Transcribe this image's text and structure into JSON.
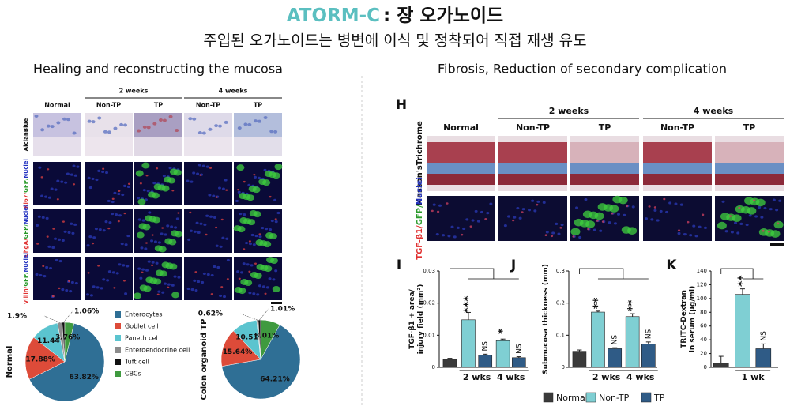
{
  "header": {
    "brand": "ATORM-C",
    "title": ": 장 오가노이드",
    "subtitle": "주입된 오가노이드는 병변에 이식 및 정착되어 직접 재생 유도"
  },
  "left": {
    "title": "Healing and reconstructing the mucosa",
    "groups": [
      "2 weeks",
      "4 weeks"
    ],
    "columns": [
      "Normal",
      "Non-TP",
      "TP",
      "Non-TP",
      "TP"
    ],
    "rows": [
      {
        "parts": [
          "AlcianBlue"
        ],
        "colors": [
          "#111111"
        ]
      },
      {
        "parts": [
          "Ki67/",
          "GFP/",
          "Nuclei"
        ],
        "colors": [
          "#e03030",
          "#2a9a2a",
          "#2030c0"
        ]
      },
      {
        "parts": [
          "ChgA/",
          "GFP/",
          "Nuclei"
        ],
        "colors": [
          "#e03030",
          "#2a9a2a",
          "#2030c0"
        ]
      },
      {
        "parts": [
          "Villin/",
          "GFP/",
          "Nuclei"
        ],
        "colors": [
          "#e03030",
          "#2a9a2a",
          "#2030c0"
        ]
      }
    ]
  },
  "right": {
    "title": "Fibrosis, Reduction of secondary complication",
    "panel": "H",
    "groups": [
      "2 weeks",
      "4 weeks"
    ],
    "columns": [
      "Normal",
      "Non-TP",
      "TP",
      "Non-TP",
      "TP"
    ],
    "rows": [
      {
        "parts": [
          "Masson's",
          "Trichrome"
        ],
        "colors": [
          "#111111",
          "#111111"
        ]
      },
      {
        "parts": [
          "TGF-β1/",
          "GFP/",
          "Nuclei"
        ],
        "colors": [
          "#e03030",
          "#2a9a2a",
          "#2030c0"
        ]
      }
    ]
  },
  "legend": [
    {
      "name": "Normal",
      "color": "#3a3a3a"
    },
    {
      "name": "Non-TP",
      "color": "#7fcfd3"
    },
    {
      "name": "TP",
      "color": "#2f5b86"
    }
  ],
  "chart_data": [
    {
      "type": "pie",
      "label": "Normal",
      "categories": [
        "Enterocytes",
        "Goblet cell",
        "Paneth cel",
        "Enteroendocrine cell",
        "Tuft cell",
        "CBCs"
      ],
      "values": [
        63.82,
        17.88,
        11.44,
        1.9,
        1.06,
        3.76
      ],
      "value_labels": [
        "63.82%",
        "17.88%",
        "11.44%",
        "1.9%",
        "1.06%",
        "3.76%"
      ],
      "colors": [
        "#2f6f95",
        "#dd4b39",
        "#5bc4cf",
        "#8c8c8c",
        "#111111",
        "#3f9a3f"
      ]
    },
    {
      "type": "pie",
      "label": "Colon organoid TP",
      "values": [
        64.21,
        15.64,
        10.51,
        0.62,
        1.01,
        8.01
      ],
      "value_labels": [
        "64.21%",
        "15.64%",
        "10.51%",
        "0.62%",
        "1.01%",
        "8.01%"
      ],
      "colors": [
        "#2f6f95",
        "#dd4b39",
        "#5bc4cf",
        "#8c8c8c",
        "#111111",
        "#3f9a3f"
      ]
    },
    {
      "type": "bar",
      "panel": "I",
      "ylabel": [
        "TGF-β1 + area/",
        "injury field (mm²)"
      ],
      "ylim": [
        0,
        0.03
      ],
      "yticks": [
        0,
        0.01,
        0.02,
        0.03
      ],
      "values": [
        0.0025,
        0.0148,
        0.0038,
        0.0083,
        0.003
      ],
      "errors": [
        0.0003,
        0.0023,
        0.0003,
        0.0005,
        0.0003
      ],
      "colors": [
        "#3a3a3a",
        "#7fcfd3",
        "#2f5b86",
        "#7fcfd3",
        "#2f5b86"
      ],
      "annotations": [
        "***",
        "NS",
        "*",
        "NS"
      ],
      "group_labels": [
        "2 wks",
        "4 wks"
      ]
    },
    {
      "type": "bar",
      "panel": "J",
      "ylabel": [
        "Submucosa thickness (mm)"
      ],
      "ylim": [
        0,
        0.3
      ],
      "yticks": [
        0,
        0.1,
        0.2,
        0.3
      ],
      "values": [
        0.05,
        0.172,
        0.058,
        0.158,
        0.073
      ],
      "errors": [
        0.004,
        0.003,
        0.003,
        0.009,
        0.006
      ],
      "colors": [
        "#3a3a3a",
        "#7fcfd3",
        "#2f5b86",
        "#7fcfd3",
        "#2f5b86"
      ],
      "annotations": [
        "**",
        "NS",
        "**",
        "NS"
      ],
      "group_labels": [
        "2 wks",
        "4 wks"
      ]
    },
    {
      "type": "bar",
      "panel": "K",
      "ylabel": [
        "TRITC-Dextran",
        "in serum (μg/ml)"
      ],
      "ylim": [
        0,
        140
      ],
      "yticks": [
        0,
        20,
        40,
        60,
        80,
        100,
        120,
        140
      ],
      "values": [
        6,
        106,
        27
      ],
      "errors": [
        10,
        8,
        7
      ],
      "colors": [
        "#3a3a3a",
        "#7fcfd3",
        "#2f5b86"
      ],
      "annotations": [
        "**",
        "NS"
      ],
      "group_labels": [
        "1 wk"
      ]
    }
  ]
}
